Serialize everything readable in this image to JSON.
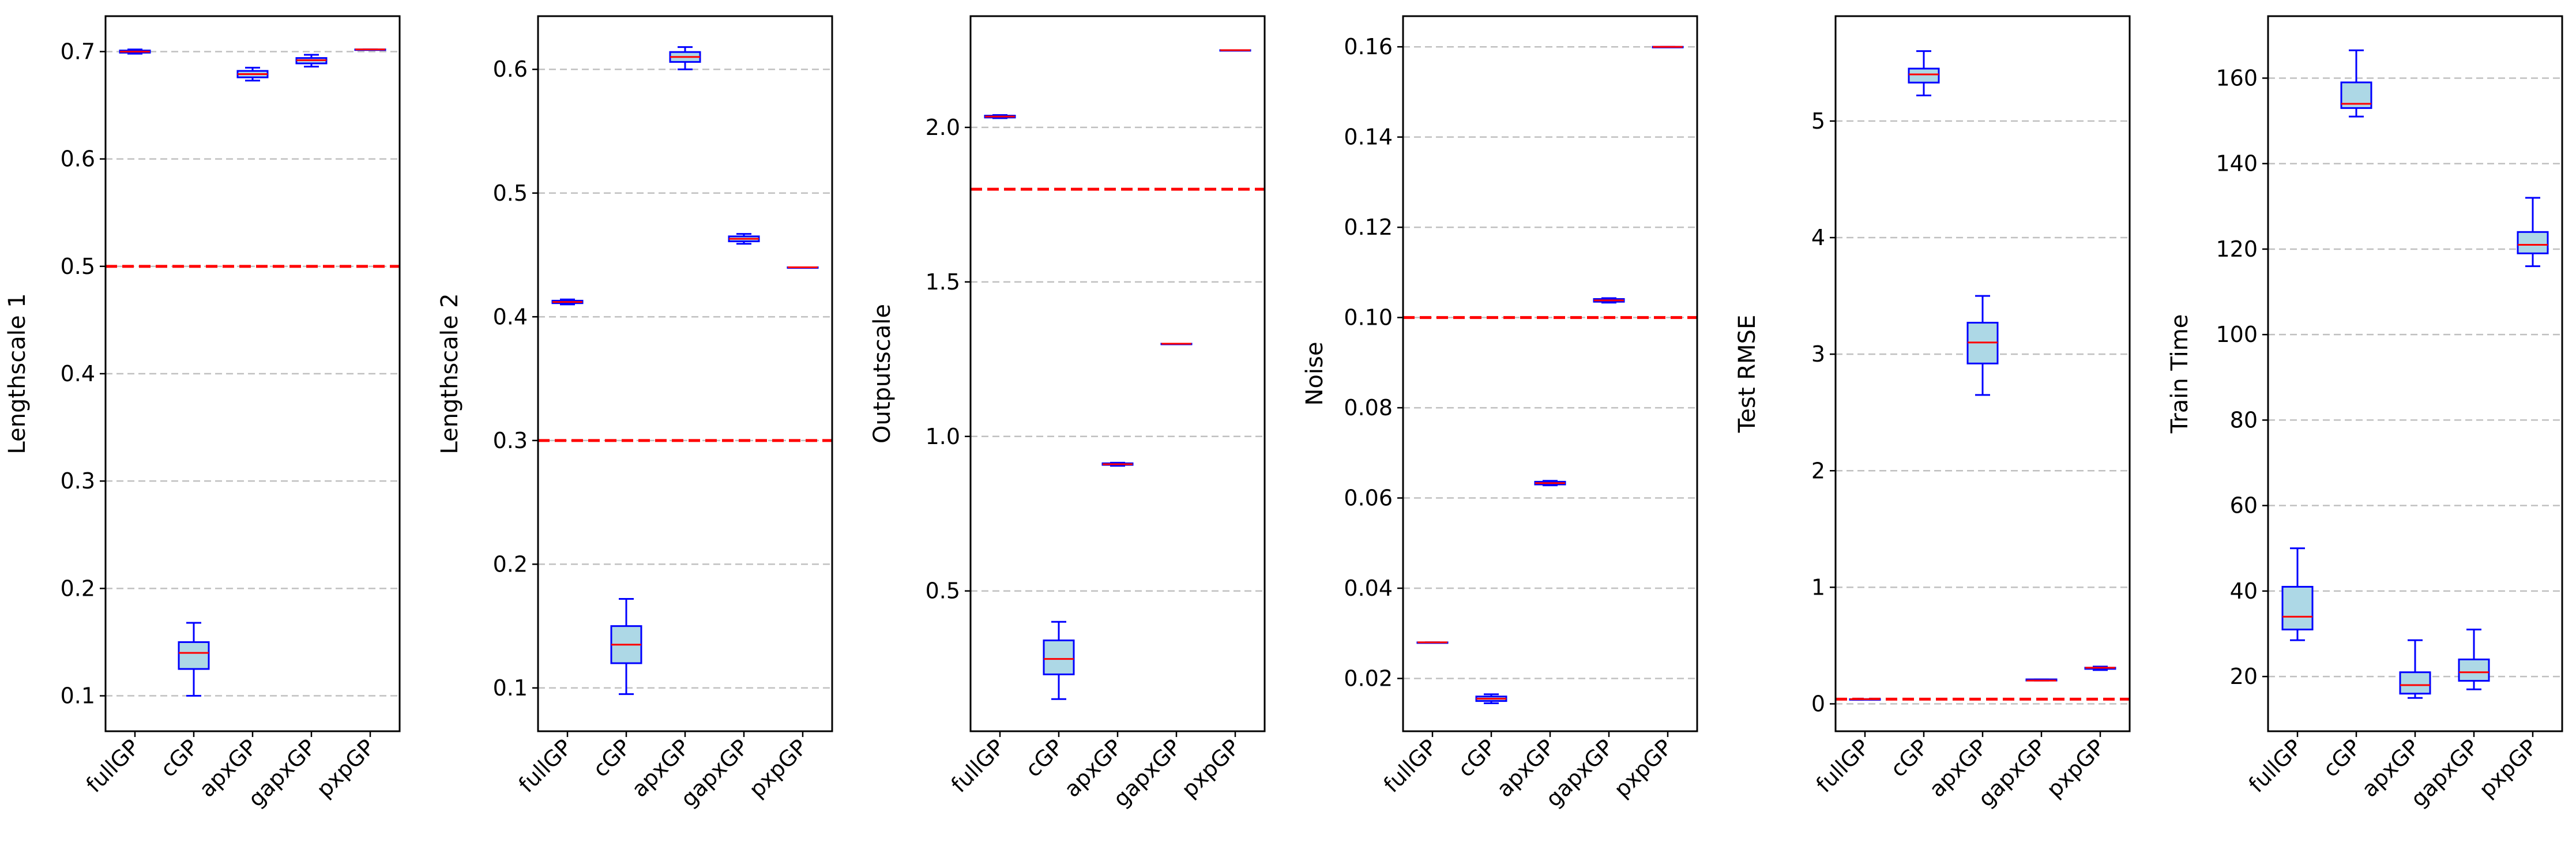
{
  "colors": {
    "box_fill": "#add8e6",
    "box_edge": "#0000ff",
    "median": "#ff0000",
    "reference_line": "#ff0000",
    "grid": "#c0c0c0",
    "axes": "#000000"
  },
  "chart_data": [
    {
      "type": "box",
      "ylabel": "Lengthscale 1",
      "categories": [
        "fullGP",
        "cGP",
        "apxGP",
        "gapxGP",
        "pxpGP"
      ],
      "ylim": [
        0.067,
        0.733
      ],
      "yticks": [
        0.1,
        0.2,
        0.3,
        0.4,
        0.5,
        0.6,
        0.7
      ],
      "ytick_labels": [
        "0.1",
        "0.2",
        "0.3",
        "0.4",
        "0.5",
        "0.6",
        "0.7"
      ],
      "reference_line": 0.5,
      "grid": "horizontal dashed",
      "boxes": [
        {
          "whislo": 0.698,
          "q1": 0.699,
          "med": 0.7,
          "q3": 0.701,
          "whishi": 0.702
        },
        {
          "whislo": 0.1,
          "q1": 0.125,
          "med": 0.14,
          "q3": 0.15,
          "whishi": 0.168
        },
        {
          "whislo": 0.673,
          "q1": 0.676,
          "med": 0.679,
          "q3": 0.682,
          "whishi": 0.685
        },
        {
          "whislo": 0.686,
          "q1": 0.689,
          "med": 0.692,
          "q3": 0.694,
          "whishi": 0.697
        },
        {
          "whislo": 0.702,
          "q1": 0.702,
          "med": 0.702,
          "q3": 0.702,
          "whishi": 0.702
        }
      ]
    },
    {
      "type": "box",
      "ylabel": "Lengthscale 2",
      "categories": [
        "fullGP",
        "cGP",
        "apxGP",
        "gapxGP",
        "pxpGP"
      ],
      "ylim": [
        0.065,
        0.643
      ],
      "yticks": [
        0.1,
        0.2,
        0.3,
        0.4,
        0.5,
        0.6
      ],
      "ytick_labels": [
        "0.1",
        "0.2",
        "0.3",
        "0.4",
        "0.5",
        "0.6"
      ],
      "reference_line": 0.3,
      "grid": "horizontal dashed",
      "boxes": [
        {
          "whislo": 0.41,
          "q1": 0.411,
          "med": 0.412,
          "q3": 0.413,
          "whishi": 0.414
        },
        {
          "whislo": 0.095,
          "q1": 0.12,
          "med": 0.135,
          "q3": 0.15,
          "whishi": 0.172
        },
        {
          "whislo": 0.6,
          "q1": 0.606,
          "med": 0.61,
          "q3": 0.614,
          "whishi": 0.618
        },
        {
          "whislo": 0.459,
          "q1": 0.461,
          "med": 0.463,
          "q3": 0.465,
          "whishi": 0.467
        },
        {
          "whislo": 0.44,
          "q1": 0.44,
          "med": 0.44,
          "q3": 0.44,
          "whishi": 0.44
        }
      ]
    },
    {
      "type": "box",
      "ylabel": "Outputscale",
      "categories": [
        "fullGP",
        "cGP",
        "apxGP",
        "gapxGP",
        "pxpGP"
      ],
      "ylim": [
        0.046,
        2.36
      ],
      "yticks": [
        0.5,
        1.0,
        1.5,
        2.0
      ],
      "ytick_labels": [
        "0.5",
        "1.0",
        "1.5",
        "2.0"
      ],
      "reference_line": 1.8,
      "grid": "horizontal dashed",
      "boxes": [
        {
          "whislo": 2.03,
          "q1": 2.032,
          "med": 2.035,
          "q3": 2.038,
          "whishi": 2.04
        },
        {
          "whislo": 0.15,
          "q1": 0.23,
          "med": 0.28,
          "q3": 0.34,
          "whishi": 0.4
        },
        {
          "whislo": 0.905,
          "q1": 0.908,
          "med": 0.91,
          "q3": 0.913,
          "whishi": 0.915
        },
        {
          "whislo": 1.3,
          "q1": 1.3,
          "med": 1.3,
          "q3": 1.3,
          "whishi": 1.3
        },
        {
          "whislo": 2.25,
          "q1": 2.25,
          "med": 2.25,
          "q3": 2.25,
          "whishi": 2.25
        }
      ]
    },
    {
      "type": "box",
      "ylabel": "Noise",
      "categories": [
        "fullGP",
        "cGP",
        "apxGP",
        "gapxGP",
        "pxpGP"
      ],
      "ylim": [
        0.0083,
        0.1668
      ],
      "yticks": [
        0.02,
        0.04,
        0.06,
        0.08,
        0.1,
        0.12,
        0.14,
        0.16
      ],
      "ytick_labels": [
        "0.02",
        "0.04",
        "0.06",
        "0.08",
        "0.10",
        "0.12",
        "0.14",
        "0.16"
      ],
      "reference_line": 0.1,
      "grid": "horizontal dashed",
      "boxes": [
        {
          "whislo": 0.028,
          "q1": 0.028,
          "med": 0.028,
          "q3": 0.028,
          "whishi": 0.028
        },
        {
          "whislo": 0.0145,
          "q1": 0.015,
          "med": 0.0155,
          "q3": 0.016,
          "whishi": 0.0165
        },
        {
          "whislo": 0.0628,
          "q1": 0.063,
          "med": 0.0633,
          "q3": 0.0636,
          "whishi": 0.0638
        },
        {
          "whislo": 0.1033,
          "q1": 0.1035,
          "med": 0.1038,
          "q3": 0.1041,
          "whishi": 0.1043
        },
        {
          "whislo": 0.16,
          "q1": 0.16,
          "med": 0.16,
          "q3": 0.16,
          "whishi": 0.16
        }
      ]
    },
    {
      "type": "box",
      "ylabel": "Test RMSE",
      "categories": [
        "fullGP",
        "cGP",
        "apxGP",
        "gapxGP",
        "pxpGP"
      ],
      "ylim": [
        -0.235,
        5.9
      ],
      "yticks": [
        0,
        1,
        2,
        3,
        4,
        5
      ],
      "ytick_labels": [
        "0",
        "1",
        "2",
        "3",
        "4",
        "5"
      ],
      "reference_line": 0.04,
      "grid": "horizontal dashed",
      "boxes": [
        {
          "whislo": 0.04,
          "q1": 0.04,
          "med": 0.04,
          "q3": 0.04,
          "whishi": 0.04
        },
        {
          "whislo": 5.22,
          "q1": 5.33,
          "med": 5.4,
          "q3": 5.45,
          "whishi": 5.6
        },
        {
          "whislo": 2.65,
          "q1": 2.92,
          "med": 3.1,
          "q3": 3.27,
          "whishi": 3.5
        },
        {
          "whislo": 0.2,
          "q1": 0.2,
          "med": 0.2,
          "q3": 0.21,
          "whishi": 0.21
        },
        {
          "whislo": 0.29,
          "q1": 0.3,
          "med": 0.31,
          "q3": 0.31,
          "whishi": 0.32
        }
      ]
    },
    {
      "type": "box",
      "ylabel": "Train Time",
      "categories": [
        "fullGP",
        "cGP",
        "apxGP",
        "gapxGP",
        "pxpGP"
      ],
      "ylim": [
        7.2,
        174.5
      ],
      "yticks": [
        20,
        40,
        60,
        80,
        100,
        120,
        140,
        160
      ],
      "ytick_labels": [
        "20",
        "40",
        "60",
        "80",
        "100",
        "120",
        "140",
        "160"
      ],
      "reference_line": null,
      "grid": "horizontal dashed",
      "boxes": [
        {
          "whislo": 28.5,
          "q1": 31,
          "med": 34,
          "q3": 41,
          "whishi": 50
        },
        {
          "whislo": 151,
          "q1": 153,
          "med": 154,
          "q3": 159,
          "whishi": 166.5
        },
        {
          "whislo": 15,
          "q1": 16,
          "med": 18,
          "q3": 21,
          "whishi": 28.5
        },
        {
          "whislo": 17,
          "q1": 19,
          "med": 21,
          "q3": 24,
          "whishi": 31
        },
        {
          "whislo": 116,
          "q1": 119,
          "med": 121,
          "q3": 124,
          "whishi": 132
        }
      ]
    }
  ]
}
